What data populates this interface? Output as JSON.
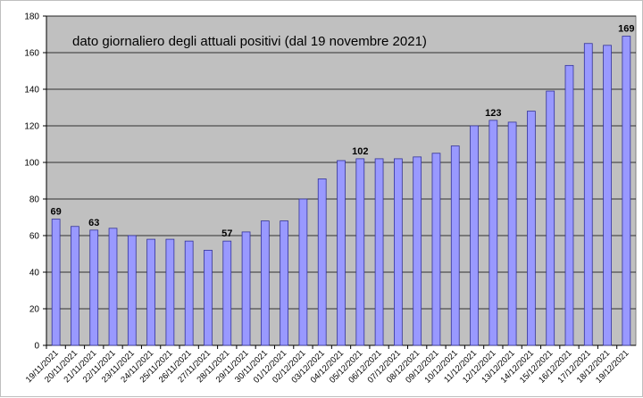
{
  "chart_data": {
    "type": "bar",
    "title": "dato giornaliero degli attuali positivi (dal 19 novembre 2021)",
    "xlabel": "",
    "ylabel": "",
    "ylim": [
      0,
      180
    ],
    "yticks": [
      0,
      20,
      40,
      60,
      80,
      100,
      120,
      140,
      160,
      180
    ],
    "grid": true,
    "legend": "none",
    "colors": {
      "plot_background": "#c0c0c0",
      "bar_fill": "#9999ff",
      "bar_stroke": "#333399",
      "gridline": "#000000"
    },
    "categories": [
      "19/11/2021",
      "20/11/2021",
      "21/11/2021",
      "22/11/2021",
      "23/11/2021",
      "24/11/2021",
      "25/11/2021",
      "26/11/2021",
      "27/11/2021",
      "28/11/2021",
      "29/11/2021",
      "30/11/2021",
      "01/12/2021",
      "02/12/2021",
      "03/12/2021",
      "04/12/2021",
      "05/12/2021",
      "06/12/2021",
      "07/12/2021",
      "08/12/2021",
      "09/12/2021",
      "10/12/2021",
      "11/12/2021",
      "12/12/2021",
      "13/12/2021",
      "14/12/2021",
      "15/12/2021",
      "16/12/2021",
      "17/12/2021",
      "18/12/2021",
      "19/12/2021"
    ],
    "values": [
      69,
      65,
      63,
      64,
      60,
      58,
      58,
      57,
      52,
      57,
      62,
      68,
      68,
      80,
      91,
      101,
      102,
      102,
      102,
      103,
      105,
      109,
      120,
      123,
      122,
      128,
      139,
      153,
      165,
      164,
      169
    ],
    "data_labels": [
      {
        "index": 0,
        "text": "69"
      },
      {
        "index": 2,
        "text": "63"
      },
      {
        "index": 9,
        "text": "57"
      },
      {
        "index": 16,
        "text": "102"
      },
      {
        "index": 23,
        "text": "123"
      },
      {
        "index": 30,
        "text": "169"
      }
    ]
  }
}
